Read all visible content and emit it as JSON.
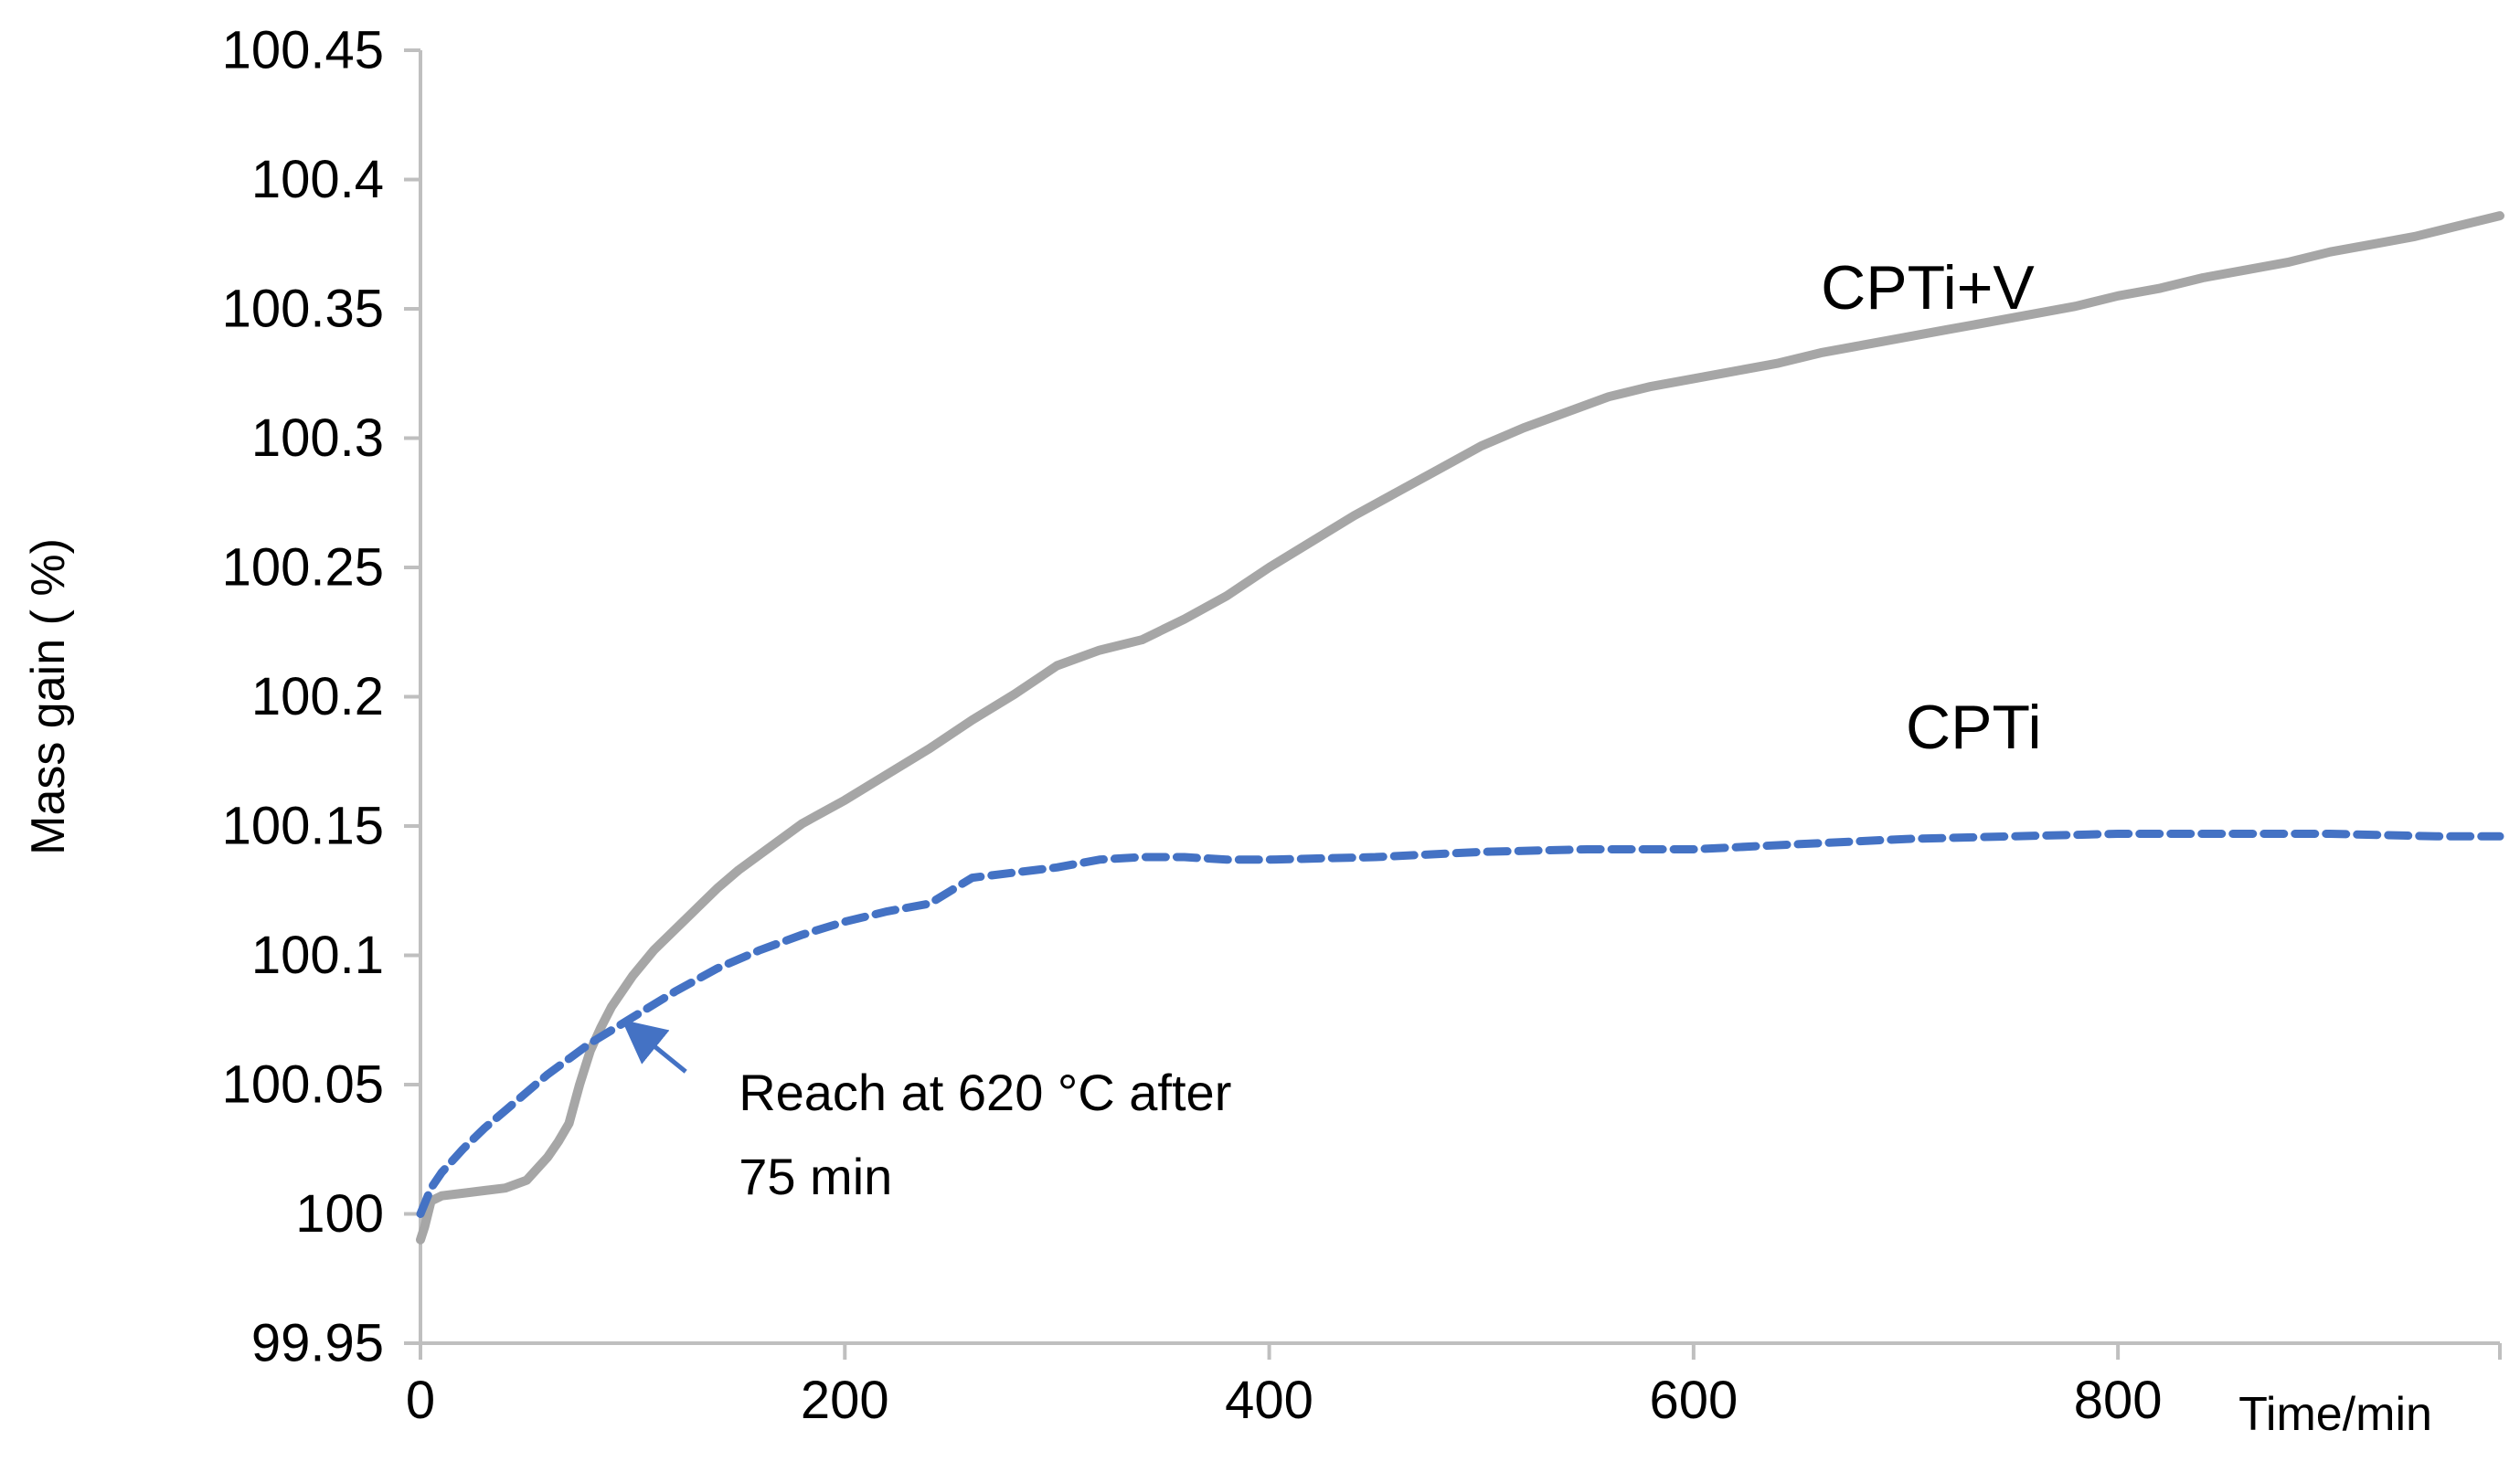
{
  "chart_data": {
    "type": "line",
    "title": "",
    "xlabel": "Time/min",
    "ylabel": "Mass gain ( %)",
    "xlim": [
      0,
      980
    ],
    "ylim": [
      99.95,
      100.45
    ],
    "grid": false,
    "legend": "none",
    "x_ticks": [
      {
        "value": 0,
        "label": "0"
      },
      {
        "value": 200,
        "label": "200"
      },
      {
        "value": 400,
        "label": "400"
      },
      {
        "value": 600,
        "label": "600"
      },
      {
        "value": 800,
        "label": "800"
      }
    ],
    "y_ticks": [
      {
        "value": 99.95,
        "label": "99.95"
      },
      {
        "value": 100,
        "label": "100"
      },
      {
        "value": 100.05,
        "label": "100.05"
      },
      {
        "value": 100.1,
        "label": "100.1"
      },
      {
        "value": 100.15,
        "label": "100.15"
      },
      {
        "value": 100.2,
        "label": "100.2"
      },
      {
        "value": 100.25,
        "label": "100.25"
      },
      {
        "value": 100.3,
        "label": "100.3"
      },
      {
        "value": 100.35,
        "label": "100.35"
      },
      {
        "value": 100.4,
        "label": "100.4"
      },
      {
        "value": 100.45,
        "label": "100.45"
      }
    ],
    "series": [
      {
        "name": "CPTi+V",
        "color": "#a6a6a6",
        "style": "solid",
        "x": [
          0,
          2,
          5,
          10,
          20,
          30,
          40,
          50,
          60,
          65,
          70,
          75,
          80,
          85,
          90,
          100,
          110,
          120,
          130,
          140,
          150,
          160,
          180,
          200,
          220,
          240,
          260,
          280,
          300,
          320,
          340,
          360,
          380,
          400,
          420,
          440,
          460,
          480,
          500,
          520,
          540,
          560,
          580,
          600,
          620,
          640,
          660,
          680,
          700,
          720,
          740,
          760,
          780,
          800,
          820,
          840,
          860,
          880,
          900,
          920,
          940,
          960,
          980
        ],
        "y": [
          99.99,
          99.995,
          100.005,
          100.007,
          100.008,
          100.009,
          100.01,
          100.013,
          100.022,
          100.028,
          100.035,
          100.05,
          100.063,
          100.072,
          100.08,
          100.092,
          100.102,
          100.11,
          100.118,
          100.126,
          100.133,
          100.139,
          100.151,
          100.16,
          100.17,
          100.18,
          100.191,
          100.201,
          100.212,
          100.218,
          100.222,
          100.23,
          100.239,
          100.25,
          100.26,
          100.27,
          100.279,
          100.288,
          100.297,
          100.304,
          100.31,
          100.316,
          100.32,
          100.323,
          100.326,
          100.329,
          100.333,
          100.336,
          100.339,
          100.342,
          100.345,
          100.348,
          100.351,
          100.355,
          100.358,
          100.362,
          100.365,
          100.368,
          100.372,
          100.375,
          100.378,
          100.382,
          100.386
        ]
      },
      {
        "name": "CPTi",
        "color": "#4472c4",
        "style": "dashed",
        "x": [
          0,
          5,
          10,
          20,
          30,
          40,
          50,
          60,
          70,
          80,
          90,
          100,
          120,
          140,
          160,
          180,
          200,
          220,
          240,
          260,
          280,
          300,
          320,
          340,
          360,
          380,
          400,
          450,
          500,
          550,
          600,
          650,
          700,
          750,
          800,
          850,
          900,
          950,
          980
        ],
        "y": [
          100,
          100.01,
          100.016,
          100.025,
          100.033,
          100.04,
          100.047,
          100.054,
          100.06,
          100.066,
          100.071,
          100.076,
          100.086,
          100.095,
          100.102,
          100.108,
          100.113,
          100.117,
          100.12,
          100.13,
          100.132,
          100.134,
          100.137,
          100.138,
          100.138,
          100.137,
          100.137,
          100.138,
          100.14,
          100.141,
          100.141,
          100.143,
          100.145,
          100.146,
          100.147,
          100.147,
          100.147,
          100.146,
          100.146
        ]
      }
    ],
    "annotations": [
      {
        "text": "CPTi+V",
        "x": 660,
        "y": 100.35
      },
      {
        "text": "CPTi",
        "x": 700,
        "y": 100.18
      }
    ],
    "callout": {
      "lines": [
        "Reach at 620 °C after",
        "75 min"
      ],
      "arrow_from": {
        "x": 125,
        "y": 100.055
      },
      "arrow_to": {
        "x": 98,
        "y": 100.073
      },
      "text_at": {
        "x": 150,
        "y": 100.05
      },
      "color": "#4472c4"
    },
    "axis_color": "#bfbfbf"
  }
}
